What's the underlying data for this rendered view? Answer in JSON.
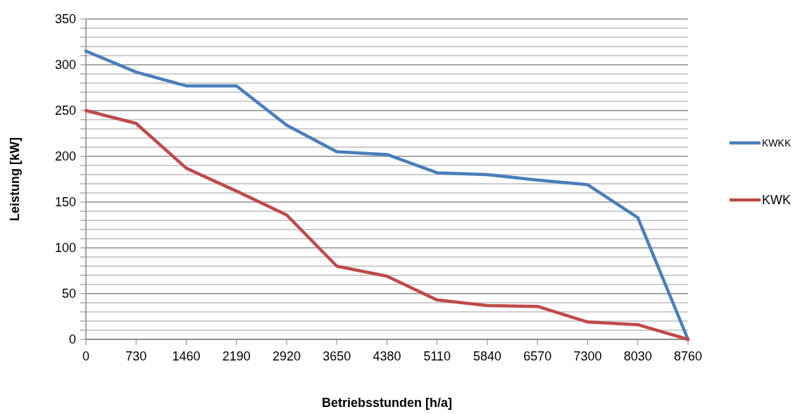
{
  "chart_data": {
    "type": "line",
    "xlabel": "Betriebsstunden [h/a]",
    "ylabel": "Leistung [kW]",
    "x": [
      0,
      730,
      1460,
      2190,
      2920,
      3650,
      4380,
      5110,
      5840,
      6570,
      7300,
      8030,
      8760
    ],
    "series": [
      {
        "name": "KWKK",
        "color": "#4a7ebb",
        "values": [
          315,
          292,
          277,
          277,
          234,
          205,
          202,
          182,
          180,
          174,
          169,
          133,
          0
        ]
      },
      {
        "name": "KWK",
        "color": "#be4b48",
        "values": [
          250,
          236,
          187,
          162,
          136,
          80,
          69,
          43,
          37,
          36,
          19,
          16,
          0
        ]
      }
    ],
    "xlim": [
      0,
      8760
    ],
    "xticks": [
      0,
      730,
      1460,
      2190,
      2920,
      3650,
      4380,
      5110,
      5840,
      6570,
      7300,
      8030,
      8760
    ],
    "ylim": [
      0,
      350
    ],
    "yticks": [
      0,
      {
        "value": 10,
        "label": null
      },
      {
        "value": 20,
        "label": null
      },
      {
        "value": 30,
        "label": null
      },
      {
        "value": 40,
        "label": null
      },
      50,
      {
        "value": 60,
        "label": null
      },
      {
        "value": 70,
        "label": null
      },
      {
        "value": 80,
        "label": null
      },
      {
        "value": 90,
        "label": null
      },
      100,
      {
        "value": 110,
        "label": null
      },
      {
        "value": 120,
        "label": null
      },
      {
        "value": 130,
        "label": null
      },
      {
        "value": 140,
        "label": null
      },
      150,
      {
        "value": 160,
        "label": null
      },
      {
        "value": 170,
        "label": null
      },
      {
        "value": 180,
        "label": null
      },
      {
        "value": 190,
        "label": null
      },
      200,
      {
        "value": 210,
        "label": null
      },
      {
        "value": 220,
        "label": null
      },
      {
        "value": 230,
        "label": null
      },
      {
        "value": 240,
        "label": null
      },
      250,
      {
        "value": 260,
        "label": null
      },
      {
        "value": 270,
        "label": null
      },
      {
        "value": 280,
        "label": null
      },
      {
        "value": 290,
        "label": null
      },
      300,
      {
        "value": 310,
        "label": null
      },
      {
        "value": 320,
        "label": null
      },
      {
        "value": 330,
        "label": null
      },
      {
        "value": 340,
        "label": null
      },
      350
    ],
    "grid": "y",
    "legend": "right",
    "marker": "none",
    "line_style": "solid"
  }
}
